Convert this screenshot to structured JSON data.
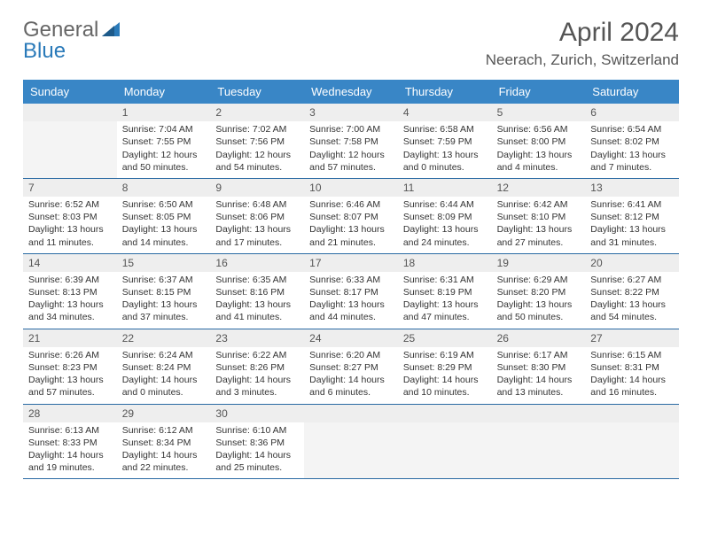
{
  "logo": {
    "text1": "General",
    "text2": "Blue"
  },
  "title": "April 2024",
  "location": "Neerach, Zurich, Switzerland",
  "colors": {
    "header_bg": "#3986c6",
    "header_text": "#ffffff",
    "daynum_bg": "#eeeeee",
    "empty_bg": "#f4f4f4",
    "week_border": "#2a6aa3",
    "text": "#333333",
    "title_text": "#555555"
  },
  "day_names": [
    "Sunday",
    "Monday",
    "Tuesday",
    "Wednesday",
    "Thursday",
    "Friday",
    "Saturday"
  ],
  "weeks": [
    [
      {
        "empty": true
      },
      {
        "num": "1",
        "sunrise": "Sunrise: 7:04 AM",
        "sunset": "Sunset: 7:55 PM",
        "day1": "Daylight: 12 hours",
        "day2": "and 50 minutes."
      },
      {
        "num": "2",
        "sunrise": "Sunrise: 7:02 AM",
        "sunset": "Sunset: 7:56 PM",
        "day1": "Daylight: 12 hours",
        "day2": "and 54 minutes."
      },
      {
        "num": "3",
        "sunrise": "Sunrise: 7:00 AM",
        "sunset": "Sunset: 7:58 PM",
        "day1": "Daylight: 12 hours",
        "day2": "and 57 minutes."
      },
      {
        "num": "4",
        "sunrise": "Sunrise: 6:58 AM",
        "sunset": "Sunset: 7:59 PM",
        "day1": "Daylight: 13 hours",
        "day2": "and 0 minutes."
      },
      {
        "num": "5",
        "sunrise": "Sunrise: 6:56 AM",
        "sunset": "Sunset: 8:00 PM",
        "day1": "Daylight: 13 hours",
        "day2": "and 4 minutes."
      },
      {
        "num": "6",
        "sunrise": "Sunrise: 6:54 AM",
        "sunset": "Sunset: 8:02 PM",
        "day1": "Daylight: 13 hours",
        "day2": "and 7 minutes."
      }
    ],
    [
      {
        "num": "7",
        "sunrise": "Sunrise: 6:52 AM",
        "sunset": "Sunset: 8:03 PM",
        "day1": "Daylight: 13 hours",
        "day2": "and 11 minutes."
      },
      {
        "num": "8",
        "sunrise": "Sunrise: 6:50 AM",
        "sunset": "Sunset: 8:05 PM",
        "day1": "Daylight: 13 hours",
        "day2": "and 14 minutes."
      },
      {
        "num": "9",
        "sunrise": "Sunrise: 6:48 AM",
        "sunset": "Sunset: 8:06 PM",
        "day1": "Daylight: 13 hours",
        "day2": "and 17 minutes."
      },
      {
        "num": "10",
        "sunrise": "Sunrise: 6:46 AM",
        "sunset": "Sunset: 8:07 PM",
        "day1": "Daylight: 13 hours",
        "day2": "and 21 minutes."
      },
      {
        "num": "11",
        "sunrise": "Sunrise: 6:44 AM",
        "sunset": "Sunset: 8:09 PM",
        "day1": "Daylight: 13 hours",
        "day2": "and 24 minutes."
      },
      {
        "num": "12",
        "sunrise": "Sunrise: 6:42 AM",
        "sunset": "Sunset: 8:10 PM",
        "day1": "Daylight: 13 hours",
        "day2": "and 27 minutes."
      },
      {
        "num": "13",
        "sunrise": "Sunrise: 6:41 AM",
        "sunset": "Sunset: 8:12 PM",
        "day1": "Daylight: 13 hours",
        "day2": "and 31 minutes."
      }
    ],
    [
      {
        "num": "14",
        "sunrise": "Sunrise: 6:39 AM",
        "sunset": "Sunset: 8:13 PM",
        "day1": "Daylight: 13 hours",
        "day2": "and 34 minutes."
      },
      {
        "num": "15",
        "sunrise": "Sunrise: 6:37 AM",
        "sunset": "Sunset: 8:15 PM",
        "day1": "Daylight: 13 hours",
        "day2": "and 37 minutes."
      },
      {
        "num": "16",
        "sunrise": "Sunrise: 6:35 AM",
        "sunset": "Sunset: 8:16 PM",
        "day1": "Daylight: 13 hours",
        "day2": "and 41 minutes."
      },
      {
        "num": "17",
        "sunrise": "Sunrise: 6:33 AM",
        "sunset": "Sunset: 8:17 PM",
        "day1": "Daylight: 13 hours",
        "day2": "and 44 minutes."
      },
      {
        "num": "18",
        "sunrise": "Sunrise: 6:31 AM",
        "sunset": "Sunset: 8:19 PM",
        "day1": "Daylight: 13 hours",
        "day2": "and 47 minutes."
      },
      {
        "num": "19",
        "sunrise": "Sunrise: 6:29 AM",
        "sunset": "Sunset: 8:20 PM",
        "day1": "Daylight: 13 hours",
        "day2": "and 50 minutes."
      },
      {
        "num": "20",
        "sunrise": "Sunrise: 6:27 AM",
        "sunset": "Sunset: 8:22 PM",
        "day1": "Daylight: 13 hours",
        "day2": "and 54 minutes."
      }
    ],
    [
      {
        "num": "21",
        "sunrise": "Sunrise: 6:26 AM",
        "sunset": "Sunset: 8:23 PM",
        "day1": "Daylight: 13 hours",
        "day2": "and 57 minutes."
      },
      {
        "num": "22",
        "sunrise": "Sunrise: 6:24 AM",
        "sunset": "Sunset: 8:24 PM",
        "day1": "Daylight: 14 hours",
        "day2": "and 0 minutes."
      },
      {
        "num": "23",
        "sunrise": "Sunrise: 6:22 AM",
        "sunset": "Sunset: 8:26 PM",
        "day1": "Daylight: 14 hours",
        "day2": "and 3 minutes."
      },
      {
        "num": "24",
        "sunrise": "Sunrise: 6:20 AM",
        "sunset": "Sunset: 8:27 PM",
        "day1": "Daylight: 14 hours",
        "day2": "and 6 minutes."
      },
      {
        "num": "25",
        "sunrise": "Sunrise: 6:19 AM",
        "sunset": "Sunset: 8:29 PM",
        "day1": "Daylight: 14 hours",
        "day2": "and 10 minutes."
      },
      {
        "num": "26",
        "sunrise": "Sunrise: 6:17 AM",
        "sunset": "Sunset: 8:30 PM",
        "day1": "Daylight: 14 hours",
        "day2": "and 13 minutes."
      },
      {
        "num": "27",
        "sunrise": "Sunrise: 6:15 AM",
        "sunset": "Sunset: 8:31 PM",
        "day1": "Daylight: 14 hours",
        "day2": "and 16 minutes."
      }
    ],
    [
      {
        "num": "28",
        "sunrise": "Sunrise: 6:13 AM",
        "sunset": "Sunset: 8:33 PM",
        "day1": "Daylight: 14 hours",
        "day2": "and 19 minutes."
      },
      {
        "num": "29",
        "sunrise": "Sunrise: 6:12 AM",
        "sunset": "Sunset: 8:34 PM",
        "day1": "Daylight: 14 hours",
        "day2": "and 22 minutes."
      },
      {
        "num": "30",
        "sunrise": "Sunrise: 6:10 AM",
        "sunset": "Sunset: 8:36 PM",
        "day1": "Daylight: 14 hours",
        "day2": "and 25 minutes."
      },
      {
        "empty": true
      },
      {
        "empty": true
      },
      {
        "empty": true
      },
      {
        "empty": true
      }
    ]
  ]
}
